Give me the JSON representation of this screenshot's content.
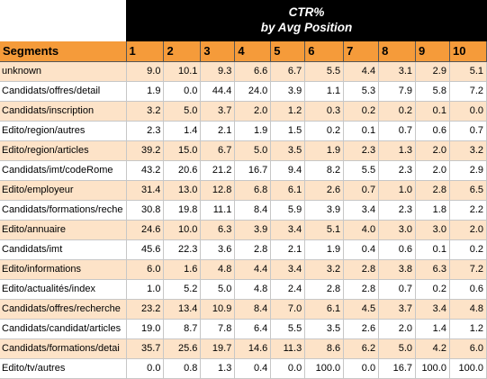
{
  "title": {
    "line1": "CTR%",
    "line2": "by Avg Position"
  },
  "table": {
    "headers": [
      "Segments",
      "1",
      "2",
      "3",
      "4",
      "5",
      "6",
      "7",
      "8",
      "9",
      "10"
    ],
    "rows": [
      [
        "unknown",
        "9.0",
        "10.1",
        "9.3",
        "6.6",
        "6.7",
        "5.5",
        "4.4",
        "3.1",
        "2.9",
        "5.1"
      ],
      [
        "Candidats/offres/detail",
        "1.9",
        "0.0",
        "44.4",
        "24.0",
        "3.9",
        "1.1",
        "5.3",
        "7.9",
        "5.8",
        "7.2"
      ],
      [
        "Candidats/inscription",
        "3.2",
        "5.0",
        "3.7",
        "2.0",
        "1.2",
        "0.3",
        "0.2",
        "0.2",
        "0.1",
        "0.0"
      ],
      [
        "Edito/region/autres",
        "2.3",
        "1.4",
        "2.1",
        "1.9",
        "1.5",
        "0.2",
        "0.1",
        "0.7",
        "0.6",
        "0.7"
      ],
      [
        "Edito/region/articles",
        "39.2",
        "15.0",
        "6.7",
        "5.0",
        "3.5",
        "1.9",
        "2.3",
        "1.3",
        "2.0",
        "3.2"
      ],
      [
        "Candidats/imt/codeRome",
        "43.2",
        "20.6",
        "21.2",
        "16.7",
        "9.4",
        "8.2",
        "5.5",
        "2.3",
        "2.0",
        "2.9"
      ],
      [
        "Edito/employeur",
        "31.4",
        "13.0",
        "12.8",
        "6.8",
        "6.1",
        "2.6",
        "0.7",
        "1.0",
        "2.8",
        "6.5"
      ],
      [
        "Candidats/formations/reche",
        "30.8",
        "19.8",
        "11.1",
        "8.4",
        "5.9",
        "3.9",
        "3.4",
        "2.3",
        "1.8",
        "2.2"
      ],
      [
        "Edito/annuaire",
        "24.6",
        "10.0",
        "6.3",
        "3.9",
        "3.4",
        "5.1",
        "4.0",
        "3.0",
        "3.0",
        "2.0"
      ],
      [
        "Candidats/imt",
        "45.6",
        "22.3",
        "3.6",
        "2.8",
        "2.1",
        "1.9",
        "0.4",
        "0.6",
        "0.1",
        "0.2"
      ],
      [
        "Edito/informations",
        "6.0",
        "1.6",
        "4.8",
        "4.4",
        "3.4",
        "3.2",
        "2.8",
        "3.8",
        "6.3",
        "7.2"
      ],
      [
        "Edito/actualités/index",
        "1.0",
        "5.2",
        "5.0",
        "4.8",
        "2.4",
        "2.8",
        "2.8",
        "0.7",
        "0.2",
        "0.6"
      ],
      [
        "Candidats/offres/recherche",
        "23.2",
        "13.4",
        "10.9",
        "8.4",
        "7.0",
        "6.1",
        "4.5",
        "3.7",
        "3.4",
        "4.8"
      ],
      [
        "Candidats/candidat/articles",
        "19.0",
        "8.7",
        "7.8",
        "6.4",
        "5.5",
        "3.5",
        "2.6",
        "2.0",
        "1.4",
        "1.2"
      ],
      [
        "Candidats/formations/detai",
        "35.7",
        "25.6",
        "19.7",
        "14.6",
        "11.3",
        "8.6",
        "6.2",
        "5.0",
        "4.2",
        "6.0"
      ],
      [
        "Edito/tv/autres",
        "0.0",
        "0.8",
        "1.3",
        "0.4",
        "0.0",
        "100.0",
        "0.0",
        "16.7",
        "100.0",
        "100.0"
      ]
    ]
  }
}
